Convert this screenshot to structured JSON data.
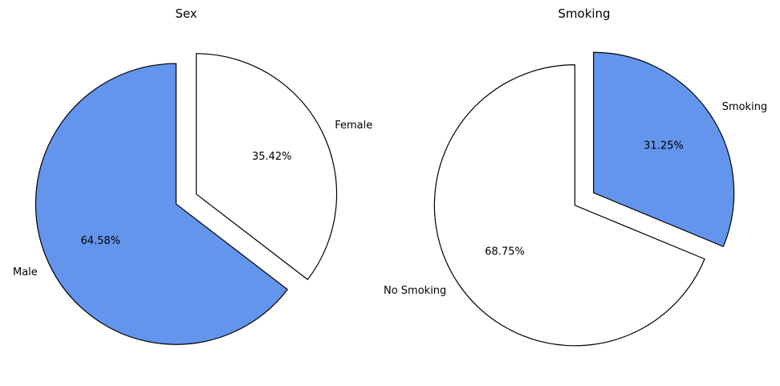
{
  "chart_data": [
    {
      "type": "pie",
      "title": "Sex",
      "start_angle_deg": 90,
      "direction": "clockwise",
      "explode": true,
      "slices": [
        {
          "label": "Female",
          "value": 35.42,
          "display": "35.42%",
          "color": "#ffffff"
        },
        {
          "label": "Male",
          "value": 64.58,
          "display": "64.58%",
          "color": "#6495ed"
        }
      ],
      "edge_color": "#000000"
    },
    {
      "type": "pie",
      "title": "Smoking",
      "start_angle_deg": 90,
      "direction": "counterclockwise",
      "explode": true,
      "slices": [
        {
          "label": "No Smoking",
          "value": 68.75,
          "display": "68.75%",
          "color": "#ffffff"
        },
        {
          "label": "Smoking",
          "value": 31.25,
          "display": "31.25%",
          "color": "#6495ed"
        }
      ],
      "edge_color": "#000000"
    }
  ]
}
